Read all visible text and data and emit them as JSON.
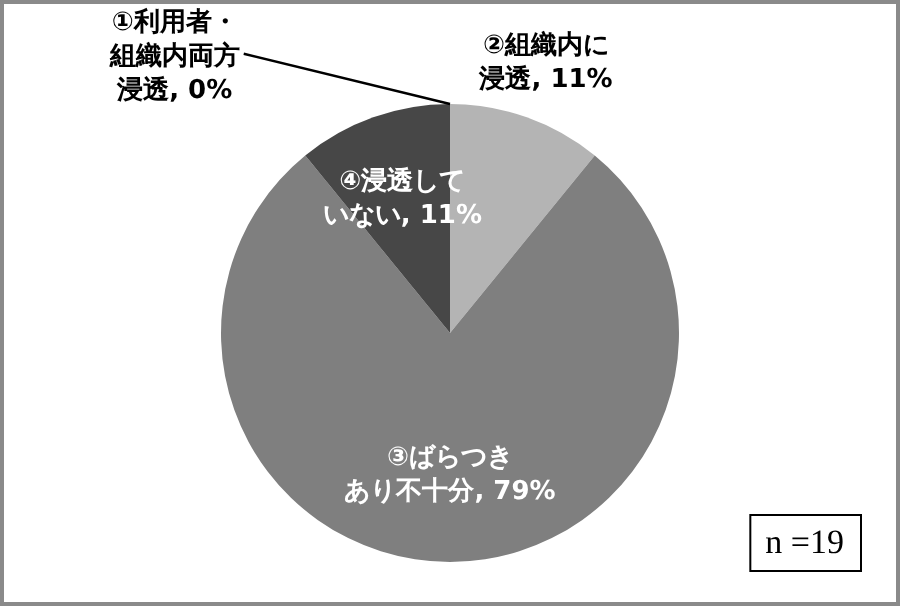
{
  "chart_data": {
    "type": "pie",
    "categories": [
      "①利用者・組織内両方浸透",
      "②組織内に浸透",
      "③ばらつきあり不十分",
      "④浸透していない"
    ],
    "values": [
      0,
      11,
      79,
      11
    ],
    "value_labels": [
      ", 0%",
      ", 11%",
      ", 79%",
      ", 11%"
    ],
    "colors": [
      "#3a3a3a",
      "#b4b4b4",
      "#7f7f7f",
      "#474747"
    ],
    "legend": false,
    "annotations": [
      "n =19"
    ]
  }
}
